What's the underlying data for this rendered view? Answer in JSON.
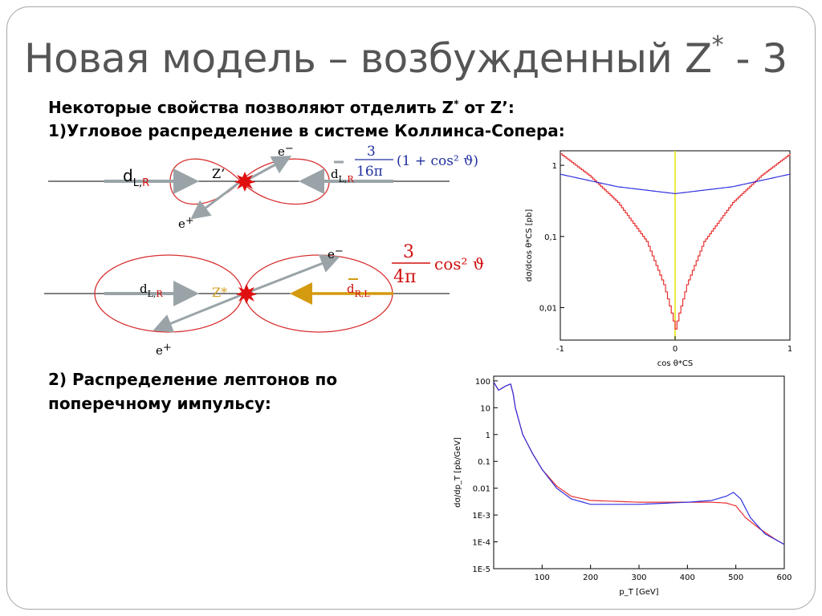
{
  "title": {
    "main": "Новая модель – возбужденный Z",
    "sup": "*",
    "suffix": " - 3"
  },
  "intro": {
    "line1_pre": "Некоторые свойства позволяют отделить Z",
    "line1_sup": "*",
    "line1_post": " от Z’:",
    "line2": "1)Угловое распределение в системе Коллинса-Сопера:"
  },
  "item2": {
    "line1": "2) Распределение лептонов по",
    "line2": "поперечному импульсу:"
  },
  "diagram1": {
    "boson": "Z’",
    "d_left": "d",
    "d_left_sub": "L,",
    "d_left_sub2": "R",
    "d_right": "d",
    "d_right_sub": "L,",
    "d_right_sub2": "R",
    "e_minus": "e",
    "e_minus_sign": "−",
    "e_plus": "e",
    "e_plus_sign": "+",
    "formula_num": "3",
    "formula_den": "16π",
    "formula_rest": "(1 + cos² ϑ)"
  },
  "diagram2": {
    "boson": "Z*",
    "d_left": "d",
    "d_left_sub": "L,",
    "d_left_sub2": "R",
    "d_right": "d",
    "d_right_sub": "R,L",
    "e_minus": "e",
    "e_minus_sign": "−",
    "e_plus": "e",
    "e_plus_sign": "+",
    "formula_num": "3",
    "formula_den": "4π",
    "formula_rest": "cos² ϑ"
  },
  "chart_data": [
    {
      "type": "line",
      "xlabel": "cos θ*CS",
      "ylabel": "dσ/dcos θ*CS [pb]",
      "xlim": [
        -1,
        1
      ],
      "ylim": [
        0.0035,
        1.6
      ],
      "yscale": "log",
      "x_ticks": [
        "-1",
        "0",
        "1"
      ],
      "y_ticks": [
        "0,01",
        "0,1",
        "1"
      ],
      "series": [
        {
          "color": "#e83030",
          "x": [
            -1,
            -0.75,
            -0.5,
            -0.25,
            -0.1,
            -0.03,
            0,
            0.03,
            0.1,
            0.25,
            0.5,
            0.75,
            1
          ],
          "y": [
            1.45,
            0.72,
            0.3,
            0.085,
            0.021,
            0.008,
            0.005,
            0.008,
            0.021,
            0.085,
            0.3,
            0.72,
            1.45
          ]
        },
        {
          "color": "#3030e0",
          "x": [
            -1,
            -0.5,
            0,
            0.5,
            1
          ],
          "y": [
            0.75,
            0.5,
            0.4,
            0.5,
            0.75
          ]
        }
      ],
      "marker_line_x": 0,
      "marker_line_color": "#e6e600"
    },
    {
      "type": "line",
      "xlabel": "p_T [GeV]",
      "ylabel": "dσ/dp_T [pb/GeV]",
      "xlim": [
        0,
        600
      ],
      "ylim": [
        1e-05,
        150
      ],
      "yscale": "log",
      "x_ticks": [
        "100",
        "200",
        "300",
        "400",
        "500",
        "600"
      ],
      "y_ticks": [
        "1E-5",
        "1E-4",
        "1E-3",
        "0.01",
        "0.1",
        "1",
        "10",
        "100"
      ],
      "series": [
        {
          "color": "#e83030",
          "x": [
            0,
            10,
            25,
            38,
            42,
            60,
            80,
            100,
            130,
            160,
            200,
            300,
            400,
            450,
            480,
            500,
            520,
            550,
            580,
            600
          ],
          "y": [
            90,
            45,
            65,
            80,
            15,
            1.0,
            0.2,
            0.05,
            0.012,
            0.005,
            0.0035,
            0.003,
            0.003,
            0.003,
            0.0028,
            0.0022,
            0.0008,
            0.0003,
            0.00013,
            8e-05
          ]
        },
        {
          "color": "#3030e0",
          "x": [
            0,
            10,
            25,
            38,
            42,
            60,
            80,
            100,
            130,
            160,
            200,
            300,
            400,
            450,
            480,
            495,
            510,
            530,
            560,
            600
          ],
          "y": [
            90,
            45,
            65,
            80,
            15,
            1.0,
            0.2,
            0.05,
            0.01,
            0.004,
            0.0025,
            0.0025,
            0.003,
            0.0035,
            0.005,
            0.007,
            0.004,
            0.0008,
            0.0002,
            8e-05
          ]
        }
      ]
    }
  ]
}
